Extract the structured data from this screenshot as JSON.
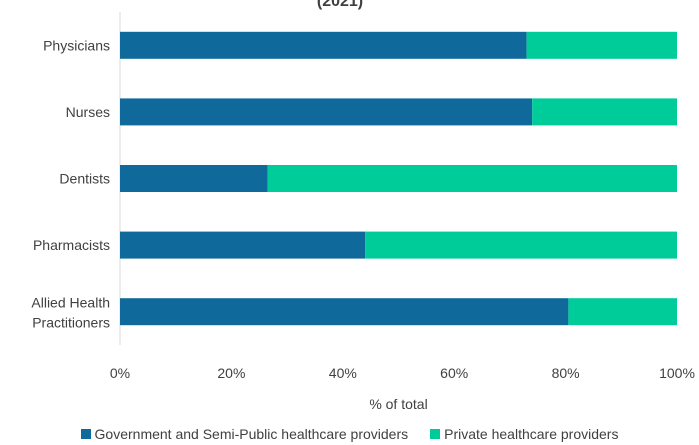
{
  "chart_data": {
    "type": "bar",
    "orientation": "horizontal",
    "stacked": true,
    "title_fragment": "(2021)",
    "categories": [
      "Physicians",
      "Nurses",
      "Dentists",
      "Pharmacists",
      "Allied Health Practitioners"
    ],
    "series": [
      {
        "name": "Government and Semi-Public healthcare providers",
        "color": "#0F6A9B",
        "values": [
          73,
          74,
          26.5,
          44,
          80.5
        ]
      },
      {
        "name": "Private healthcare providers",
        "color": "#00CC99",
        "values": [
          27,
          26,
          73.5,
          56,
          19.5
        ]
      }
    ],
    "xlim": [
      0,
      100
    ],
    "xticks": [
      "0%",
      "20%",
      "40%",
      "60%",
      "80%",
      "100%"
    ],
    "xlabel": "% of total",
    "grid": false,
    "legend_position": "bottom"
  }
}
